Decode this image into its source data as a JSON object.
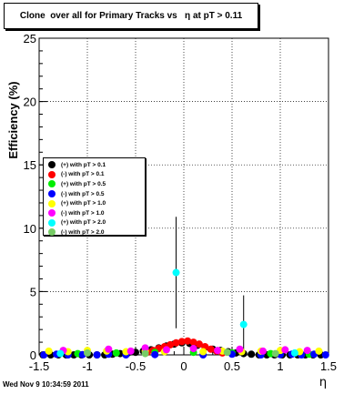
{
  "title": "Clone  over all for Primary Tracks vs   η at pT > 0.11",
  "footer": "Wed Nov  9 10:34:59 2011",
  "chart_data": {
    "type": "scatter",
    "xlabel": "η",
    "ylabel": "Efficiency (%)",
    "xlim": [
      -1.5,
      1.5
    ],
    "ylim": [
      0,
      25
    ],
    "x_ticks": [
      "-1.5",
      "-1",
      "-0.5",
      "0",
      "0.5",
      "1",
      "1.5"
    ],
    "y_ticks": [
      "0",
      "5",
      "10",
      "15",
      "20",
      "25"
    ],
    "grid": true,
    "legend_position": "left",
    "series": [
      {
        "name": "(+) with pT > 0.1",
        "color": "#000000",
        "x": [
          -1.46,
          -1.38,
          -1.3,
          -1.22,
          -1.14,
          -1.06,
          -0.98,
          -0.9,
          -0.82,
          -0.74,
          -0.66,
          -0.58,
          -0.5,
          -0.42,
          -0.34,
          -0.26,
          -0.18,
          -0.1,
          -0.02,
          0.06,
          0.14,
          0.22,
          0.3,
          0.38,
          0.46,
          0.54,
          0.62,
          0.7,
          0.78,
          0.86,
          0.94,
          1.02,
          1.1,
          1.18,
          1.26,
          1.34,
          1.42
        ],
        "y": [
          0,
          0,
          0,
          0,
          0,
          0,
          0,
          0,
          0,
          0.05,
          0.1,
          0.15,
          0.2,
          0.3,
          0.4,
          0.55,
          0.7,
          0.85,
          0.95,
          0.9,
          0.75,
          0.6,
          0.45,
          0.35,
          0.25,
          0.15,
          0.1,
          0.05,
          0,
          0,
          0,
          0,
          0,
          0,
          0,
          0,
          0
        ]
      },
      {
        "name": "(-) with pT > 0.1",
        "color": "#ff0000",
        "x": [
          -0.38,
          -0.32,
          -0.26,
          -0.2,
          -0.14,
          -0.08,
          -0.02,
          0.04,
          0.1,
          0.16,
          0.22,
          0.28,
          0.34,
          0.4
        ],
        "y": [
          0.2,
          0.35,
          0.5,
          0.65,
          0.8,
          0.95,
          1.05,
          1.1,
          1.0,
          0.85,
          0.65,
          0.45,
          0.3,
          0.15
        ]
      },
      {
        "name": "(+) with pT > 0.5",
        "color": "#00ee00",
        "x": [
          -1.1,
          -0.7,
          -0.3,
          0.1,
          0.5,
          0.9,
          1.3
        ],
        "y": [
          0.1,
          0.15,
          0.2,
          0.2,
          0.15,
          0.1,
          0.05
        ]
      },
      {
        "name": "(-) with pT > 0.5",
        "color": "#0000ff",
        "x": [
          -1.45,
          -1.32,
          -1.2,
          -1.05,
          -0.9,
          -0.78,
          -0.6,
          -0.3,
          0.2,
          0.5,
          0.8,
          1.0,
          1.12,
          1.22,
          1.35,
          1.47
        ],
        "y": [
          0,
          0.05,
          0,
          0.02,
          0,
          0.05,
          0,
          0.02,
          0,
          0.05,
          0,
          0.02,
          0.05,
          0,
          0.05,
          0
        ]
      },
      {
        "name": "(+) with pT > 1.0",
        "color": "#ffff00",
        "x": [
          -1.4,
          -1.2,
          -1.0,
          -0.8,
          -0.6,
          -0.4,
          -0.2,
          0.2,
          0.4,
          0.6,
          0.8,
          1.0,
          1.2,
          1.4
        ],
        "y": [
          0.3,
          0.25,
          0.35,
          0.3,
          0.25,
          0.3,
          0.25,
          0.25,
          0.3,
          0.25,
          0.3,
          0.35,
          0.25,
          0.3
        ]
      },
      {
        "name": "(-) with pT > 1.0",
        "color": "#ff00ff",
        "x": [
          -1.25,
          -0.78,
          -0.55,
          -0.4,
          -0.18,
          0.1,
          0.35,
          0.58,
          0.82,
          1.05,
          1.28
        ],
        "y": [
          0.35,
          0.45,
          0.3,
          0.55,
          0.4,
          0.5,
          0.35,
          0.45,
          0.3,
          0.4,
          0.35
        ]
      },
      {
        "name": "(+) with pT > 2.0",
        "color": "#00ffff",
        "x": [
          -1.28,
          -0.08,
          0.62,
          1.15
        ],
        "y": [
          0.1,
          6.5,
          2.4,
          0.15
        ],
        "yerr": [
          0,
          4.4,
          2.3,
          0
        ]
      },
      {
        "name": "(-) with pT > 2.0",
        "color": "#77cc66",
        "x": [
          -1.0,
          -0.4,
          0.45,
          0.95
        ],
        "y": [
          0.15,
          0.1,
          0.2,
          0.1
        ]
      }
    ]
  }
}
